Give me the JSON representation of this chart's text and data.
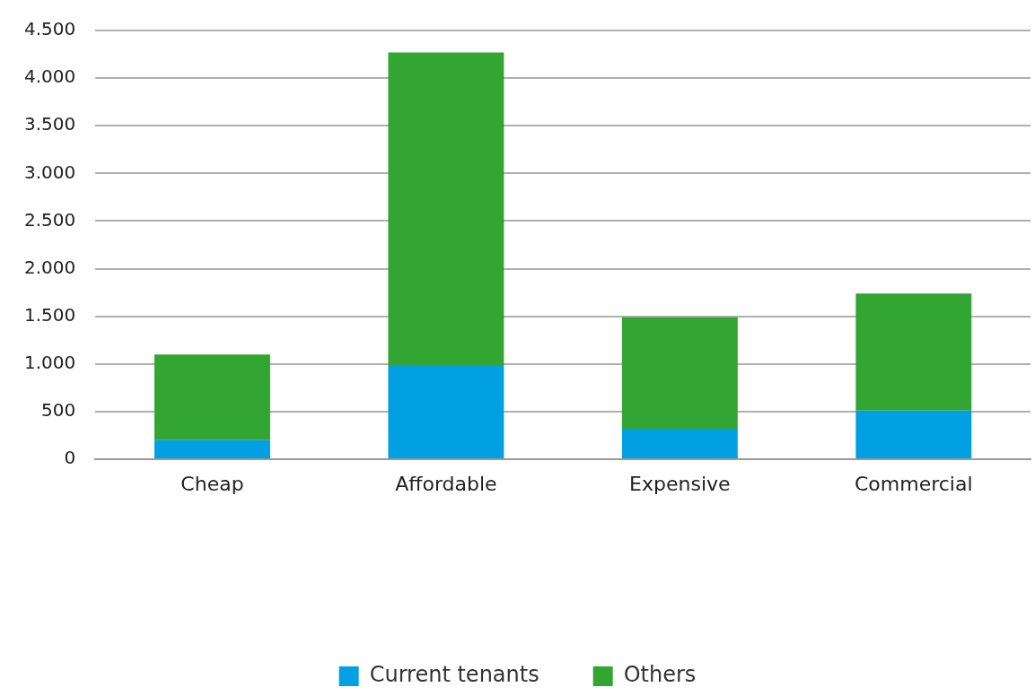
{
  "chart_data": {
    "type": "bar",
    "stacked": true,
    "categories": [
      "Cheap",
      "Affordable",
      "Expensive",
      "Commercial"
    ],
    "series": [
      {
        "name": "Current tenants",
        "color": "#00a0e3",
        "values": [
          200,
          980,
          320,
          510
        ]
      },
      {
        "name": "Others",
        "color": "#33a532",
        "values": [
          900,
          3290,
          1170,
          1230
        ]
      }
    ],
    "ylim": [
      0,
      4500
    ],
    "yticks": [
      {
        "value": 0,
        "label": "0"
      },
      {
        "value": 500,
        "label": "500"
      },
      {
        "value": 1000,
        "label": "1.000"
      },
      {
        "value": 1500,
        "label": "1.500"
      },
      {
        "value": 2000,
        "label": "2.000"
      },
      {
        "value": 2500,
        "label": "2.500"
      },
      {
        "value": 3000,
        "label": "3.000"
      },
      {
        "value": 3500,
        "label": "3.500"
      },
      {
        "value": 4000,
        "label": "4.000"
      },
      {
        "value": 4500,
        "label": "4.500"
      }
    ],
    "grid": "y",
    "legend": "bottom"
  }
}
